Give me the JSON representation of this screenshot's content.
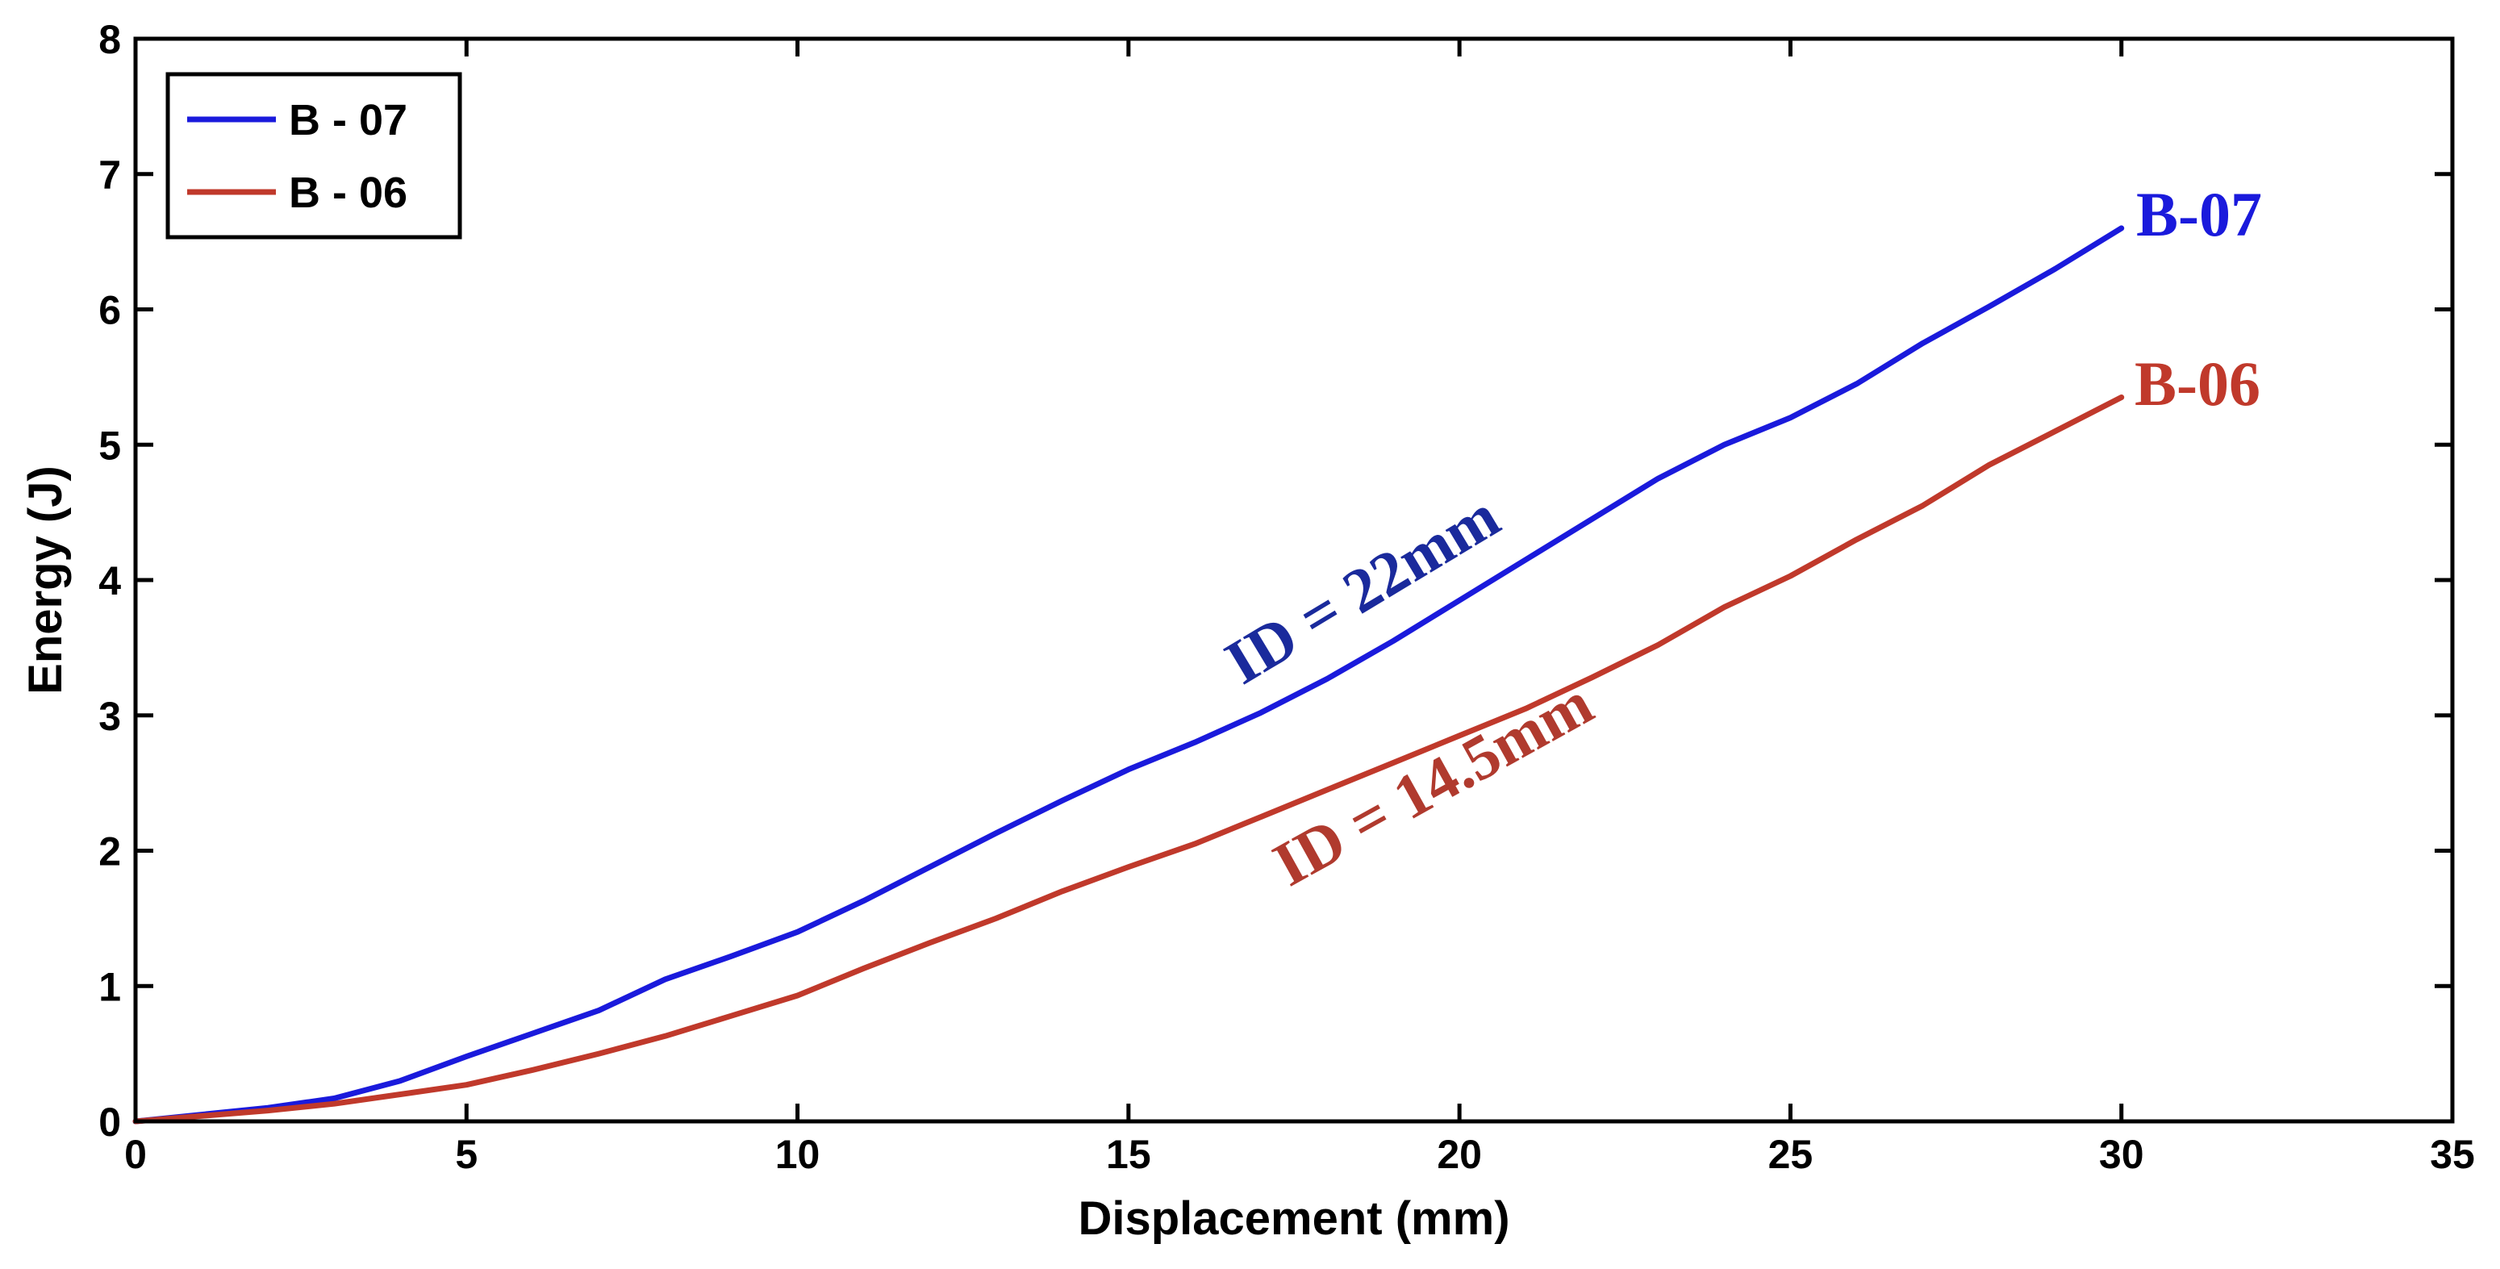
{
  "chart_data": {
    "type": "line",
    "title": "",
    "xlabel": "Displacement (mm)",
    "ylabel": "Energy (J)",
    "xlim": [
      0,
      35
    ],
    "ylim": [
      0,
      8
    ],
    "xticks": [
      0,
      5,
      10,
      15,
      20,
      25,
      30,
      35
    ],
    "yticks": [
      0,
      1,
      2,
      3,
      4,
      5,
      6,
      7,
      8
    ],
    "xtick_labels": [
      "0",
      "5",
      "10",
      "15",
      "20",
      "25",
      "30",
      "35"
    ],
    "ytick_labels": [
      "0",
      "1",
      "2",
      "3",
      "4",
      "5",
      "6",
      "7",
      "8"
    ],
    "grid": false,
    "legend_position": "top-left",
    "series": [
      {
        "name": "B - 07",
        "color": "#1a1adc",
        "x": [
          0,
          1,
          2,
          3,
          4,
          5,
          6,
          7,
          8,
          9,
          10,
          11,
          12,
          13,
          14,
          15,
          16,
          17,
          18,
          19,
          20,
          21,
          22,
          23,
          24,
          25,
          26,
          27,
          28,
          29,
          30
        ],
        "y": [
          0,
          0.05,
          0.1,
          0.17,
          0.3,
          0.48,
          0.65,
          0.82,
          1.05,
          1.22,
          1.4,
          1.63,
          1.88,
          2.13,
          2.37,
          2.6,
          2.8,
          3.02,
          3.27,
          3.55,
          3.85,
          4.15,
          4.45,
          4.75,
          5.0,
          5.2,
          5.45,
          5.75,
          6.02,
          6.3,
          6.6
        ]
      },
      {
        "name": "B - 06",
        "color": "#c0392b",
        "x": [
          0,
          1,
          2,
          3,
          4,
          5,
          6,
          7,
          8,
          9,
          10,
          11,
          12,
          13,
          14,
          15,
          16,
          17,
          18,
          19,
          20,
          21,
          22,
          23,
          24,
          25,
          26,
          27,
          28,
          29,
          30
        ],
        "y": [
          0,
          0.04,
          0.08,
          0.13,
          0.2,
          0.27,
          0.38,
          0.5,
          0.63,
          0.78,
          0.93,
          1.13,
          1.32,
          1.5,
          1.7,
          1.88,
          2.05,
          2.25,
          2.45,
          2.65,
          2.85,
          3.05,
          3.28,
          3.52,
          3.8,
          4.03,
          4.3,
          4.55,
          4.85,
          5.1,
          5.35
        ]
      }
    ],
    "annotations": [
      {
        "text": "B-07",
        "color": "#1a1adc"
      },
      {
        "text": "B-06",
        "color": "#c0392b"
      },
      {
        "text": "ID = 22mm",
        "color": "#1a2a9c"
      },
      {
        "text": "ID = 14.5mm",
        "color": "#b03a2e"
      }
    ]
  }
}
